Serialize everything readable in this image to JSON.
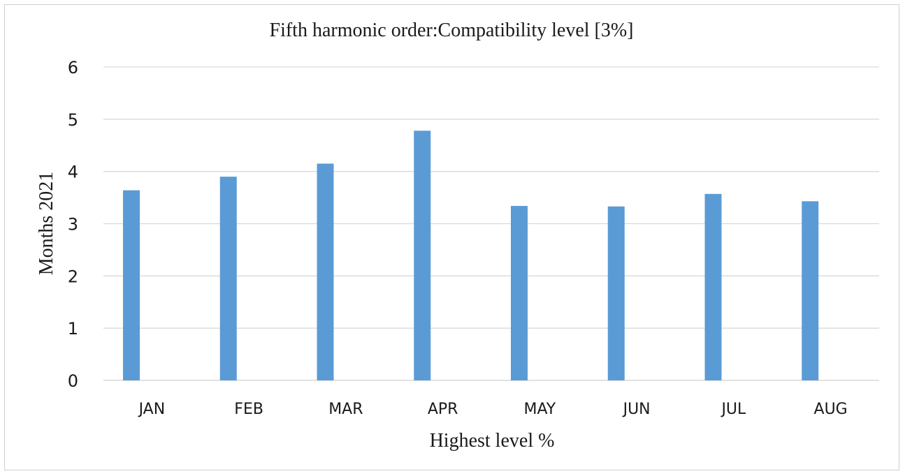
{
  "chart_data": {
    "type": "bar",
    "title": "Fifth harmonic order:Compatibility level [3%]",
    "xlabel": "Highest level %",
    "ylabel": "Months 2021",
    "categories": [
      "JAN",
      "FEB",
      "MAR",
      "APR",
      "MAY",
      "JUN",
      "JUL",
      "AUG"
    ],
    "series": [
      {
        "values": [
          3.64,
          3.9,
          4.15,
          4.78,
          3.34,
          3.33,
          3.57,
          3.43
        ],
        "color": "#5b9bd5"
      }
    ],
    "ylim": [
      0,
      6
    ],
    "yticks": [
      "0",
      "1",
      "2",
      "3",
      "4",
      "5",
      "6"
    ],
    "grid": true,
    "legend": "none"
  }
}
